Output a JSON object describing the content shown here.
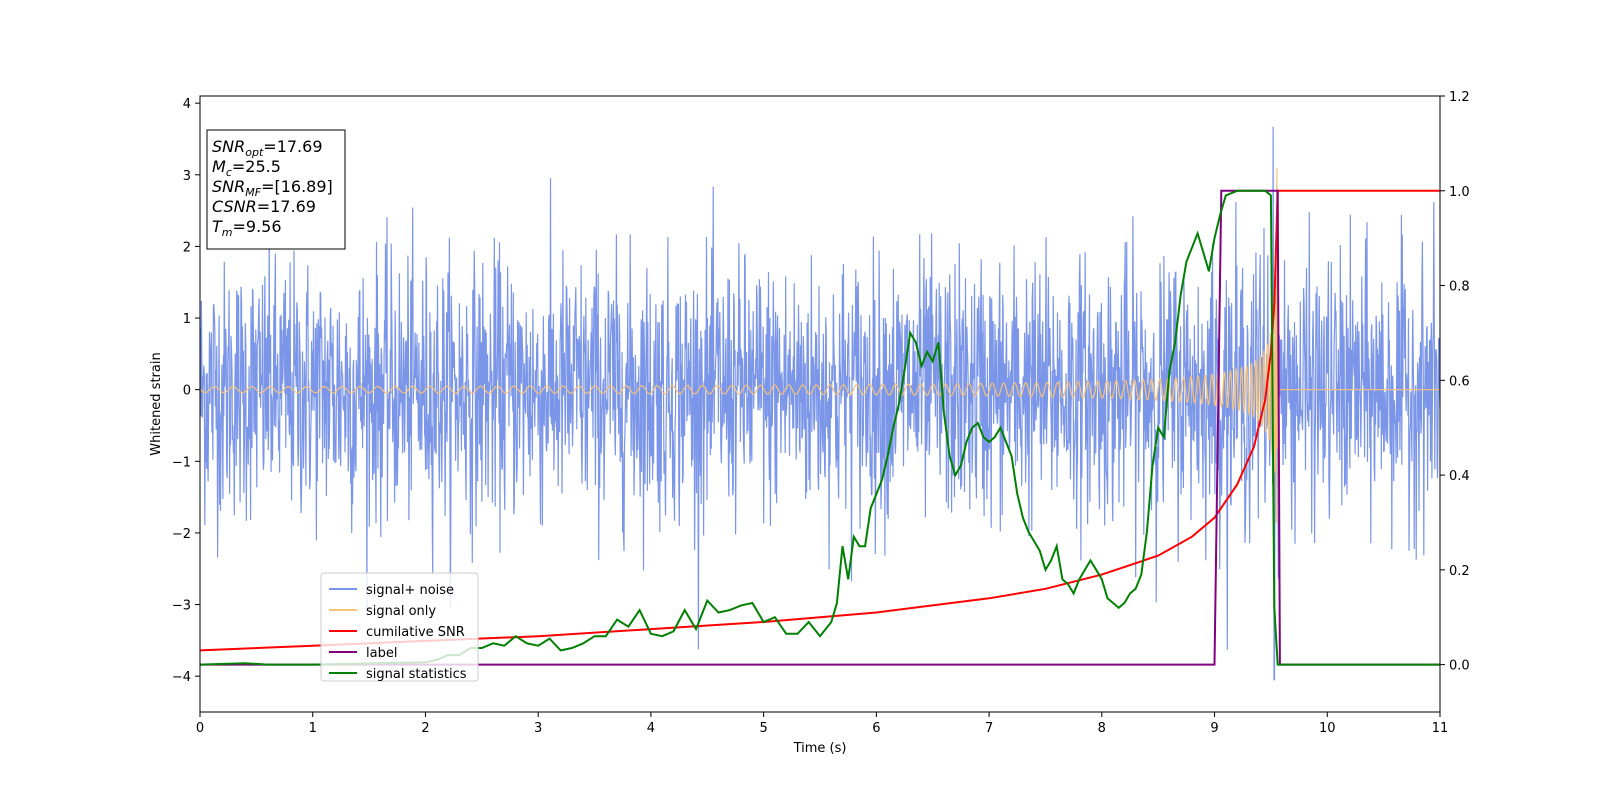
{
  "chart_data": {
    "type": "line",
    "xlabel": "Time (s)",
    "ylabel": "Whitened strain",
    "xlim": [
      0,
      11
    ],
    "ylim": [
      -4.5,
      4.1
    ],
    "y2lim": [
      -0.1,
      1.2
    ],
    "x_ticks": [
      "0",
      "1",
      "2",
      "3",
      "4",
      "5",
      "6",
      "7",
      "8",
      "9",
      "10",
      "11"
    ],
    "y_ticks": [
      "4",
      "3",
      "2",
      "1",
      "0",
      "−1",
      "−2",
      "−3",
      "−4"
    ],
    "y2_ticks": [
      "1.2",
      "1.0",
      "0.8",
      "0.6",
      "0.4",
      "0.2",
      "0.0"
    ],
    "grid": false,
    "legend_position": "lower-left",
    "annotation": {
      "lines": [
        {
          "main": "SNR",
          "sub": "opt",
          "value": "=17.69"
        },
        {
          "main": "M",
          "sub": "c",
          "value": "=25.5"
        },
        {
          "main": "SNR",
          "sub": "MF",
          "value": "=[16.89]"
        },
        {
          "main": "CSNR",
          "sub": "",
          "value": "=17.69"
        },
        {
          "main": "T",
          "sub": "m",
          "value": "=9.56"
        }
      ]
    },
    "series": [
      {
        "name": "signal+ noise",
        "axis": "left",
        "color": "#7b96e8",
        "description_values": {
          "noise_std": 0.9,
          "spike_time": 9.52,
          "spike_max": 3.67,
          "spike_min": -4.05
        }
      },
      {
        "name": "signal only",
        "axis": "left",
        "color": "#f5c27a",
        "chirp": {
          "merger_time": 9.56,
          "peak_amplitude": 3.28,
          "start_amplitude": 0.04
        }
      },
      {
        "name": "cumilative SNR",
        "axis": "right",
        "color": "#ff0000",
        "x": [
          0,
          1,
          2,
          3,
          4,
          5,
          6,
          7,
          7.5,
          8,
          8.5,
          8.8,
          9,
          9.2,
          9.35,
          9.45,
          9.5,
          9.53,
          9.56,
          9.6,
          11
        ],
        "y": [
          0.03,
          0.04,
          0.05,
          0.06,
          0.075,
          0.09,
          0.11,
          0.14,
          0.16,
          0.19,
          0.23,
          0.27,
          0.31,
          0.38,
          0.46,
          0.56,
          0.66,
          0.76,
          1.0,
          1.0,
          1.0
        ]
      },
      {
        "name": "label",
        "axis": "right",
        "color": "#800080",
        "x": [
          0,
          9.0,
          9.06,
          9.56,
          9.58,
          11
        ],
        "y": [
          0,
          0,
          1,
          1,
          0,
          0
        ]
      },
      {
        "name": "signal statistics",
        "axis": "right",
        "color": "#008000",
        "x": [
          0,
          0.4,
          0.6,
          1.0,
          2.0,
          2.1,
          2.2,
          2.3,
          2.4,
          2.5,
          2.6,
          2.7,
          2.8,
          2.9,
          3.0,
          3.1,
          3.2,
          3.3,
          3.4,
          3.5,
          3.6,
          3.7,
          3.8,
          3.9,
          4.0,
          4.1,
          4.2,
          4.3,
          4.4,
          4.5,
          4.6,
          4.7,
          4.8,
          4.9,
          5.0,
          5.1,
          5.2,
          5.3,
          5.4,
          5.5,
          5.6,
          5.65,
          5.7,
          5.75,
          5.8,
          5.85,
          5.9,
          5.95,
          6.0,
          6.05,
          6.1,
          6.15,
          6.2,
          6.25,
          6.3,
          6.35,
          6.4,
          6.45,
          6.5,
          6.55,
          6.6,
          6.65,
          6.7,
          6.75,
          6.8,
          6.85,
          6.9,
          6.95,
          7.0,
          7.05,
          7.1,
          7.15,
          7.2,
          7.25,
          7.3,
          7.35,
          7.4,
          7.45,
          7.5,
          7.55,
          7.6,
          7.65,
          7.7,
          7.75,
          7.8,
          7.85,
          7.9,
          7.95,
          8.0,
          8.05,
          8.1,
          8.15,
          8.2,
          8.25,
          8.3,
          8.35,
          8.4,
          8.45,
          8.5,
          8.55,
          8.6,
          8.65,
          8.7,
          8.75,
          8.8,
          8.85,
          8.9,
          8.95,
          9.0,
          9.05,
          9.1,
          9.2,
          9.3,
          9.4,
          9.45,
          9.5,
          9.53,
          9.56,
          9.6,
          9.65,
          11
        ],
        "y": [
          0,
          0.003,
          0,
          0,
          0.005,
          0.01,
          0.02,
          0.02,
          0.035,
          0.035,
          0.045,
          0.04,
          0.06,
          0.045,
          0.04,
          0.055,
          0.03,
          0.035,
          0.045,
          0.06,
          0.06,
          0.095,
          0.08,
          0.115,
          0.065,
          0.06,
          0.07,
          0.115,
          0.075,
          0.135,
          0.11,
          0.115,
          0.125,
          0.13,
          0.09,
          0.1,
          0.065,
          0.065,
          0.09,
          0.06,
          0.09,
          0.13,
          0.25,
          0.18,
          0.27,
          0.25,
          0.25,
          0.33,
          0.36,
          0.39,
          0.44,
          0.5,
          0.55,
          0.62,
          0.7,
          0.68,
          0.63,
          0.66,
          0.64,
          0.68,
          0.53,
          0.44,
          0.4,
          0.42,
          0.47,
          0.5,
          0.51,
          0.48,
          0.47,
          0.48,
          0.5,
          0.47,
          0.44,
          0.36,
          0.31,
          0.28,
          0.26,
          0.24,
          0.2,
          0.22,
          0.25,
          0.18,
          0.17,
          0.15,
          0.18,
          0.2,
          0.22,
          0.2,
          0.18,
          0.14,
          0.13,
          0.12,
          0.13,
          0.15,
          0.16,
          0.19,
          0.28,
          0.42,
          0.5,
          0.48,
          0.62,
          0.68,
          0.78,
          0.85,
          0.88,
          0.91,
          0.87,
          0.83,
          0.9,
          0.95,
          0.99,
          1.0,
          1.0,
          1.0,
          1.0,
          0.99,
          0.12,
          0.0,
          0.0,
          0.0,
          0.0
        ]
      }
    ]
  }
}
